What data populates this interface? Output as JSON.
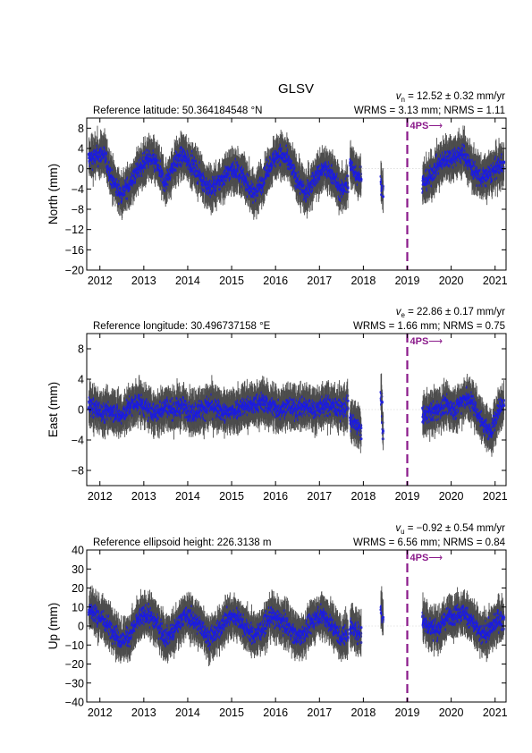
{
  "title": "GLSV",
  "colors": {
    "point": "#1a1ae6",
    "errorbar": "#4d4d4d",
    "marker_line": "#8a1a8a",
    "frame": "#000000"
  },
  "marker_label": "4PS",
  "marker_arrow": "⟶",
  "chart_data": [
    {
      "type": "scatter",
      "component": "north",
      "ylabel": "North (mm)",
      "info_left": "Reference latitude: 50.364184548 °N",
      "rate_symbol": "v",
      "rate_subscript": "n",
      "rate_text": " = 12.52 ± 0.32 mm/yr",
      "stats_text": "WRMS = 3.13 mm; NRMS = 1.11",
      "ylim": [
        -20,
        10
      ],
      "yticks": [
        -20,
        -16,
        -12,
        -8,
        -4,
        0,
        4,
        8
      ],
      "xlim": [
        2011.7,
        2021.25
      ],
      "xticks": [
        2012,
        2013,
        2014,
        2015,
        2016,
        2017,
        2018,
        2019,
        2020,
        2021
      ],
      "marker_x": 2019.0,
      "series": [
        {
          "segment": [
            2011.75,
            2017.65
          ],
          "points": [
            [
              2011.8,
              2.0
            ],
            [
              2012.1,
              3.0
            ],
            [
              2012.3,
              -2.5
            ],
            [
              2012.5,
              -5.0
            ],
            [
              2012.7,
              -3.0
            ],
            [
              2012.9,
              0.0
            ],
            [
              2013.1,
              2.0
            ],
            [
              2013.3,
              1.0
            ],
            [
              2013.5,
              -3.0
            ],
            [
              2013.7,
              1.0
            ],
            [
              2013.9,
              2.5
            ],
            [
              2014.1,
              1.0
            ],
            [
              2014.3,
              -1.5
            ],
            [
              2014.5,
              -4.0
            ],
            [
              2014.7,
              -3.0
            ],
            [
              2014.9,
              -1.0
            ],
            [
              2015.1,
              0.0
            ],
            [
              2015.3,
              -2.0
            ],
            [
              2015.5,
              -5.0
            ],
            [
              2015.7,
              -3.0
            ],
            [
              2015.9,
              1.0
            ],
            [
              2016.1,
              3.0
            ],
            [
              2016.3,
              1.5
            ],
            [
              2016.5,
              -2.0
            ],
            [
              2016.7,
              -5.0
            ],
            [
              2016.9,
              -2.0
            ],
            [
              2017.1,
              0.0
            ],
            [
              2017.3,
              -1.0
            ],
            [
              2017.5,
              -4.5
            ],
            [
              2017.65,
              -3.0
            ]
          ]
        },
        {
          "segment": [
            2017.7,
            2017.95
          ],
          "points": [
            [
              2017.7,
              1.0
            ],
            [
              2017.85,
              -1.0
            ],
            [
              2017.95,
              -1.5
            ]
          ]
        },
        {
          "segment": [
            2018.4,
            2018.45
          ],
          "points": [
            [
              2018.42,
              -3.0
            ],
            [
              2018.44,
              -4.0
            ]
          ]
        },
        {
          "segment": [
            2019.35,
            2021.2
          ],
          "points": [
            [
              2019.35,
              -3.0
            ],
            [
              2019.5,
              -2.0
            ],
            [
              2019.7,
              0.5
            ],
            [
              2019.9,
              2.0
            ],
            [
              2020.1,
              2.5
            ],
            [
              2020.3,
              3.0
            ],
            [
              2020.5,
              0.0
            ],
            [
              2020.7,
              -2.0
            ],
            [
              2020.9,
              -1.0
            ],
            [
              2021.1,
              0.5
            ],
            [
              2021.2,
              1.0
            ]
          ]
        }
      ]
    },
    {
      "type": "scatter",
      "component": "east",
      "ylabel": "East (mm)",
      "info_left": "Reference longitude: 30.496737158 °E",
      "rate_symbol": "v",
      "rate_subscript": "e",
      "rate_text": " = 22.86 ± 0.17 mm/yr",
      "stats_text": "WRMS = 1.66 mm; NRMS = 0.75",
      "ylim": [
        -10,
        10
      ],
      "yticks": [
        -8,
        -4,
        0,
        4,
        8
      ],
      "xlim": [
        2011.7,
        2021.25
      ],
      "xticks": [
        2012,
        2013,
        2014,
        2015,
        2016,
        2017,
        2018,
        2019,
        2020,
        2021
      ],
      "marker_x": 2019.0,
      "series": [
        {
          "segment": [
            2011.75,
            2017.65
          ],
          "points": [
            [
              2011.8,
              0.5
            ],
            [
              2012.1,
              -0.5
            ],
            [
              2012.3,
              0.0
            ],
            [
              2012.5,
              -1.0
            ],
            [
              2012.7,
              0.5
            ],
            [
              2012.9,
              1.0
            ],
            [
              2013.1,
              0.0
            ],
            [
              2013.3,
              -0.5
            ],
            [
              2013.5,
              0.5
            ],
            [
              2013.7,
              0.0
            ],
            [
              2013.9,
              0.5
            ],
            [
              2014.1,
              -0.5
            ],
            [
              2014.3,
              0.0
            ],
            [
              2014.5,
              0.5
            ],
            [
              2014.7,
              0.0
            ],
            [
              2014.9,
              -0.5
            ],
            [
              2015.1,
              0.0
            ],
            [
              2015.3,
              0.5
            ],
            [
              2015.5,
              0.5
            ],
            [
              2015.7,
              1.0
            ],
            [
              2015.9,
              0.5
            ],
            [
              2016.1,
              0.0
            ],
            [
              2016.3,
              0.5
            ],
            [
              2016.5,
              0.0
            ],
            [
              2016.7,
              0.5
            ],
            [
              2016.9,
              0.0
            ],
            [
              2017.1,
              0.5
            ],
            [
              2017.3,
              0.5
            ],
            [
              2017.5,
              0.0
            ],
            [
              2017.65,
              0.5
            ]
          ]
        },
        {
          "segment": [
            2017.7,
            2017.95
          ],
          "points": [
            [
              2017.7,
              -1.5
            ],
            [
              2017.85,
              -2.0
            ],
            [
              2017.95,
              -2.5
            ]
          ]
        },
        {
          "segment": [
            2018.4,
            2018.45
          ],
          "points": [
            [
              2018.42,
              1.0
            ],
            [
              2018.44,
              -2.5
            ]
          ]
        },
        {
          "segment": [
            2019.35,
            2021.2
          ],
          "points": [
            [
              2019.35,
              -1.0
            ],
            [
              2019.5,
              -0.5
            ],
            [
              2019.7,
              0.0
            ],
            [
              2019.9,
              0.5
            ],
            [
              2020.1,
              0.0
            ],
            [
              2020.3,
              1.5
            ],
            [
              2020.5,
              1.0
            ],
            [
              2020.7,
              -1.5
            ],
            [
              2020.9,
              -3.0
            ],
            [
              2021.1,
              0.0
            ],
            [
              2021.2,
              1.0
            ]
          ]
        }
      ]
    },
    {
      "type": "scatter",
      "component": "up",
      "ylabel": "Up (mm)",
      "info_left": "Reference ellipsoid height: 226.3138 m",
      "rate_symbol": "v",
      "rate_subscript": "u",
      "rate_text": " = −0.92 ± 0.54 mm/yr",
      "stats_text": "WRMS = 6.56 mm; NRMS = 0.84",
      "ylim": [
        -40,
        40
      ],
      "yticks": [
        -40,
        -30,
        -20,
        -10,
        0,
        10,
        20,
        30,
        40
      ],
      "xlim": [
        2011.7,
        2021.25
      ],
      "xticks": [
        2012,
        2013,
        2014,
        2015,
        2016,
        2017,
        2018,
        2019,
        2020,
        2021
      ],
      "marker_x": 2019.0,
      "series": [
        {
          "segment": [
            2011.75,
            2017.65
          ],
          "points": [
            [
              2011.8,
              8.0
            ],
            [
              2012.1,
              3.0
            ],
            [
              2012.3,
              -2.0
            ],
            [
              2012.5,
              -8.0
            ],
            [
              2012.7,
              -5.0
            ],
            [
              2012.9,
              4.0
            ],
            [
              2013.1,
              6.0
            ],
            [
              2013.3,
              2.0
            ],
            [
              2013.5,
              -6.0
            ],
            [
              2013.7,
              -3.0
            ],
            [
              2013.9,
              5.0
            ],
            [
              2014.1,
              4.0
            ],
            [
              2014.3,
              0.0
            ],
            [
              2014.5,
              -6.0
            ],
            [
              2014.7,
              -3.0
            ],
            [
              2014.9,
              4.0
            ],
            [
              2015.1,
              5.0
            ],
            [
              2015.3,
              0.0
            ],
            [
              2015.5,
              -5.0
            ],
            [
              2015.7,
              -2.0
            ],
            [
              2015.9,
              5.0
            ],
            [
              2016.1,
              3.0
            ],
            [
              2016.3,
              0.0
            ],
            [
              2016.5,
              -6.0
            ],
            [
              2016.7,
              -3.0
            ],
            [
              2016.9,
              4.0
            ],
            [
              2017.1,
              6.0
            ],
            [
              2017.3,
              0.0
            ],
            [
              2017.5,
              -6.0
            ],
            [
              2017.65,
              -4.0
            ]
          ]
        },
        {
          "segment": [
            2017.7,
            2017.95
          ],
          "points": [
            [
              2017.7,
              0.0
            ],
            [
              2017.85,
              -3.0
            ],
            [
              2017.95,
              -4.0
            ]
          ]
        },
        {
          "segment": [
            2018.4,
            2018.45
          ],
          "points": [
            [
              2018.42,
              10.0
            ],
            [
              2018.44,
              5.0
            ]
          ]
        },
        {
          "segment": [
            2019.35,
            2021.2
          ],
          "points": [
            [
              2019.35,
              3.0
            ],
            [
              2019.5,
              0.0
            ],
            [
              2019.7,
              -2.0
            ],
            [
              2019.9,
              4.0
            ],
            [
              2020.1,
              6.0
            ],
            [
              2020.3,
              7.0
            ],
            [
              2020.5,
              2.0
            ],
            [
              2020.7,
              -5.0
            ],
            [
              2020.9,
              -2.0
            ],
            [
              2021.1,
              4.0
            ],
            [
              2021.2,
              2.0
            ]
          ]
        }
      ]
    }
  ]
}
